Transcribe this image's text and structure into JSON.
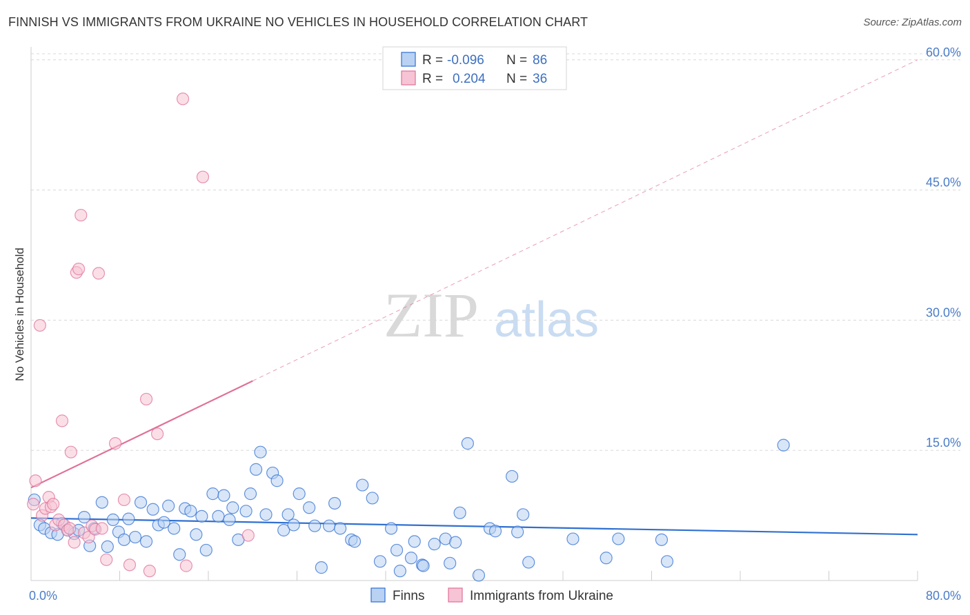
{
  "title": "FINNISH VS IMMIGRANTS FROM UKRAINE NO VEHICLES IN HOUSEHOLD CORRELATION CHART",
  "source": "Source: ZipAtlas.com",
  "watermark": {
    "zip": "ZIP",
    "atlas": "atlas"
  },
  "colors": {
    "finns": "#2f6fd1",
    "finns_fill": "#b9d2f3",
    "ukraine": "#e07099",
    "ukraine_fill": "#f6c4d4",
    "tick": "#4a7cc8",
    "grid": "#d8d8d8"
  },
  "legend": {
    "rows": [
      {
        "r_label": "R = ",
        "r_value": "-0.096",
        "n_label": "N = ",
        "n_value": "86"
      },
      {
        "r_label": "R = ",
        "r_value": "0.204",
        "n_label": "N = ",
        "n_value": "36"
      }
    ]
  },
  "chart_data": {
    "type": "scatter",
    "xlabel": "",
    "ylabel": "No Vehicles in Household",
    "xlim": [
      0,
      80
    ],
    "ylim": [
      0,
      63
    ],
    "x_tick_labels": [
      "0.0%",
      "80.0%"
    ],
    "y_ticks": [
      15,
      30,
      45,
      60
    ],
    "y_tick_labels": [
      "15.0%",
      "30.0%",
      "45.0%",
      "60.0%"
    ],
    "grid": "horizontal dashed",
    "legend_position": "top-center",
    "series": [
      {
        "name": "Finns",
        "trend": {
          "x": [
            0,
            80
          ],
          "y": [
            7.2,
            5.3
          ],
          "style": "solid"
        },
        "points": [
          [
            0.3,
            9.3
          ],
          [
            0.8,
            6.4
          ],
          [
            1.2,
            6.0
          ],
          [
            1.8,
            5.5
          ],
          [
            2.4,
            5.3
          ],
          [
            2.8,
            6.6
          ],
          [
            3.3,
            5.8
          ],
          [
            3.9,
            5.4
          ],
          [
            4.3,
            5.8
          ],
          [
            4.8,
            7.3
          ],
          [
            5.3,
            4.0
          ],
          [
            5.7,
            6.0
          ],
          [
            6.4,
            9.0
          ],
          [
            6.9,
            3.9
          ],
          [
            7.4,
            7.0
          ],
          [
            7.9,
            5.6
          ],
          [
            8.4,
            4.7
          ],
          [
            8.8,
            7.1
          ],
          [
            9.4,
            5.0
          ],
          [
            9.9,
            9.0
          ],
          [
            10.4,
            4.5
          ],
          [
            11.0,
            8.2
          ],
          [
            11.5,
            6.4
          ],
          [
            12.0,
            6.7
          ],
          [
            12.4,
            8.6
          ],
          [
            12.9,
            6.0
          ],
          [
            13.4,
            3.0
          ],
          [
            13.9,
            8.3
          ],
          [
            14.4,
            8.0
          ],
          [
            14.9,
            5.3
          ],
          [
            15.4,
            7.4
          ],
          [
            15.8,
            3.5
          ],
          [
            16.4,
            10.0
          ],
          [
            16.9,
            7.4
          ],
          [
            17.4,
            9.8
          ],
          [
            17.9,
            7.0
          ],
          [
            18.2,
            8.4
          ],
          [
            18.7,
            4.7
          ],
          [
            19.4,
            8.0
          ],
          [
            19.8,
            10.0
          ],
          [
            20.3,
            12.8
          ],
          [
            20.7,
            14.8
          ],
          [
            21.2,
            7.6
          ],
          [
            21.8,
            12.4
          ],
          [
            22.2,
            11.5
          ],
          [
            22.8,
            5.8
          ],
          [
            23.2,
            7.6
          ],
          [
            23.7,
            6.4
          ],
          [
            24.2,
            10.0
          ],
          [
            25.1,
            8.4
          ],
          [
            25.6,
            6.3
          ],
          [
            26.2,
            1.5
          ],
          [
            26.9,
            6.3
          ],
          [
            27.4,
            8.9
          ],
          [
            27.9,
            6.0
          ],
          [
            28.9,
            4.7
          ],
          [
            29.2,
            4.5
          ],
          [
            29.9,
            11.0
          ],
          [
            30.8,
            9.5
          ],
          [
            31.5,
            2.2
          ],
          [
            32.5,
            6.0
          ],
          [
            33.0,
            3.5
          ],
          [
            33.3,
            1.1
          ],
          [
            34.3,
            2.6
          ],
          [
            34.6,
            4.5
          ],
          [
            35.3,
            1.8
          ],
          [
            35.4,
            1.7
          ],
          [
            36.4,
            4.2
          ],
          [
            37.4,
            4.8
          ],
          [
            37.8,
            2.0
          ],
          [
            38.3,
            4.4
          ],
          [
            38.7,
            7.8
          ],
          [
            39.4,
            15.8
          ],
          [
            40.4,
            0.6
          ],
          [
            41.4,
            6.0
          ],
          [
            41.9,
            5.7
          ],
          [
            43.4,
            12.0
          ],
          [
            43.9,
            5.6
          ],
          [
            44.4,
            7.6
          ],
          [
            44.9,
            2.1
          ],
          [
            48.9,
            4.8
          ],
          [
            51.9,
            2.6
          ],
          [
            53.0,
            4.8
          ],
          [
            56.9,
            4.7
          ],
          [
            57.4,
            2.2
          ],
          [
            67.9,
            15.6
          ]
        ]
      },
      {
        "name": "Immigrants from Ukraine",
        "trend": {
          "x": [
            0,
            20
          ],
          "y": [
            10.7,
            23.0
          ],
          "ext_x": [
            20,
            80
          ],
          "ext_y": [
            23.0,
            60.0
          ],
          "style": "solid+dashed"
        },
        "points": [
          [
            0.2,
            8.8
          ],
          [
            0.4,
            11.5
          ],
          [
            0.8,
            29.4
          ],
          [
            1.0,
            7.5
          ],
          [
            1.3,
            8.3
          ],
          [
            1.6,
            9.6
          ],
          [
            1.8,
            8.5
          ],
          [
            2.0,
            8.8
          ],
          [
            2.2,
            6.4
          ],
          [
            2.5,
            7.0
          ],
          [
            2.8,
            18.4
          ],
          [
            3.0,
            6.4
          ],
          [
            3.3,
            5.8
          ],
          [
            3.5,
            6.0
          ],
          [
            3.6,
            14.8
          ],
          [
            3.9,
            4.4
          ],
          [
            4.1,
            35.5
          ],
          [
            4.3,
            35.9
          ],
          [
            4.5,
            42.1
          ],
          [
            4.8,
            5.5
          ],
          [
            5.2,
            5.0
          ],
          [
            5.5,
            6.3
          ],
          [
            5.8,
            5.9
          ],
          [
            6.1,
            35.4
          ],
          [
            6.4,
            6.0
          ],
          [
            6.8,
            2.4
          ],
          [
            7.6,
            15.8
          ],
          [
            8.4,
            9.3
          ],
          [
            8.9,
            1.8
          ],
          [
            10.4,
            20.9
          ],
          [
            10.7,
            1.1
          ],
          [
            11.4,
            16.9
          ],
          [
            13.7,
            55.5
          ],
          [
            14.0,
            1.7
          ],
          [
            15.5,
            46.5
          ],
          [
            19.6,
            5.2
          ]
        ]
      }
    ]
  }
}
